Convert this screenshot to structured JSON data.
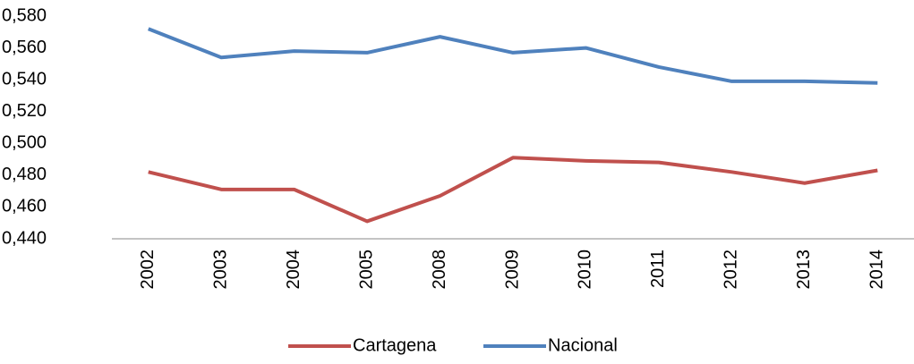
{
  "chart_data": {
    "type": "line",
    "categories": [
      "2002",
      "2003",
      "2004",
      "2005",
      "2008",
      "2009",
      "2010",
      "2011",
      "2012",
      "2013",
      "2014"
    ],
    "series": [
      {
        "name": "Cartagena",
        "color": "#c0504d",
        "values": [
          0.482,
          0.471,
          0.471,
          0.451,
          0.467,
          0.491,
          0.489,
          0.488,
          0.482,
          0.475,
          0.483
        ]
      },
      {
        "name": "Nacional",
        "color": "#4f81bd",
        "values": [
          0.572,
          0.554,
          0.558,
          0.557,
          0.567,
          0.557,
          0.56,
          0.548,
          0.539,
          0.539,
          0.538
        ]
      }
    ],
    "ylim": [
      0.44,
      0.58
    ],
    "yticks": [
      {
        "value": 0.44,
        "label": "0,440"
      },
      {
        "value": 0.46,
        "label": "0,460"
      },
      {
        "value": 0.48,
        "label": "0,480"
      },
      {
        "value": 0.5,
        "label": "0,500"
      },
      {
        "value": 0.52,
        "label": "0,520"
      },
      {
        "value": 0.54,
        "label": "0,540"
      },
      {
        "value": 0.56,
        "label": "0,560"
      },
      {
        "value": 0.58,
        "label": "0,580"
      }
    ],
    "grid": false,
    "legend": "bottom"
  }
}
